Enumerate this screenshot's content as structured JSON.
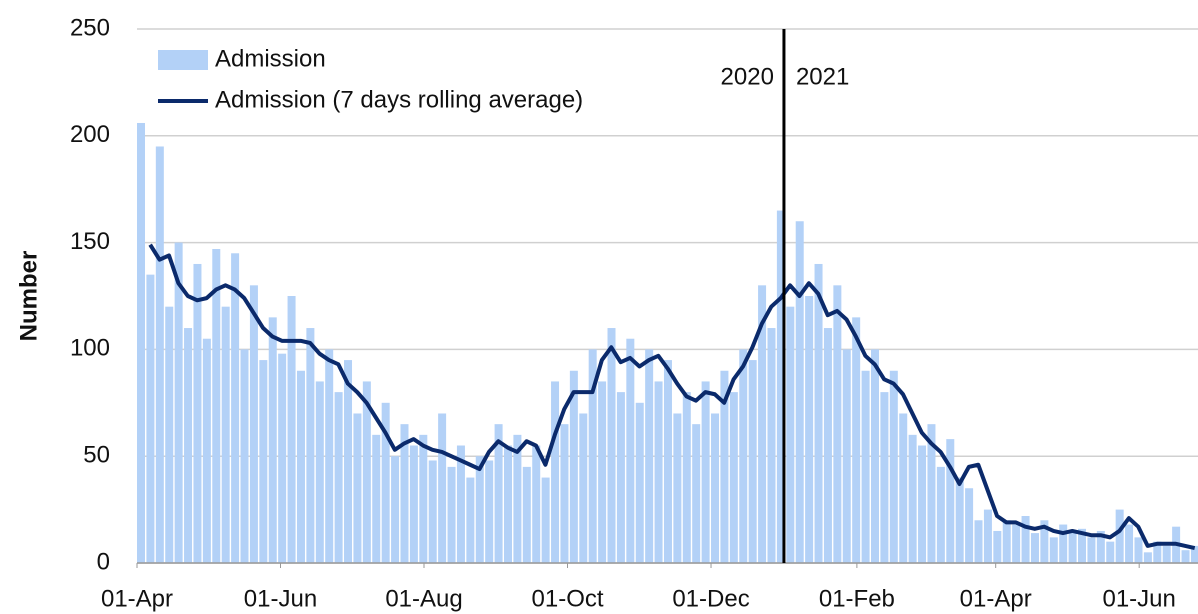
{
  "chart_data": {
    "type": "bar",
    "y_label": "Number",
    "annotations": [
      "2020",
      "2021"
    ],
    "year_divider": 275,
    "xlim": [
      0,
      451
    ],
    "xticks": [
      {
        "value": 0,
        "label": "01-Apr"
      },
      {
        "value": 61,
        "label": "01-Jun"
      },
      {
        "value": 122,
        "label": "01-Aug"
      },
      {
        "value": 183,
        "label": "01-Oct"
      },
      {
        "value": 244,
        "label": "01-Dec"
      },
      {
        "value": 306,
        "label": "01-Feb"
      },
      {
        "value": 365,
        "label": "01-Apr"
      },
      {
        "value": 426,
        "label": "01-Jun"
      }
    ],
    "ylim": [
      0,
      250
    ],
    "yticks": [
      0,
      50,
      100,
      150,
      200,
      250
    ],
    "grid": true,
    "legend": "top-left",
    "x": [
      0,
      4,
      8,
      12,
      16,
      20,
      24,
      28,
      32,
      36,
      40,
      44,
      48,
      52,
      56,
      60,
      64,
      68,
      72,
      76,
      80,
      84,
      88,
      92,
      96,
      100,
      104,
      108,
      112,
      116,
      120,
      124,
      128,
      132,
      136,
      140,
      144,
      148,
      152,
      156,
      160,
      164,
      168,
      172,
      176,
      180,
      184,
      188,
      192,
      196,
      200,
      204,
      208,
      212,
      216,
      220,
      224,
      228,
      232,
      236,
      240,
      244,
      248,
      252,
      256,
      260,
      264,
      268,
      272,
      276,
      280,
      284,
      288,
      292,
      296,
      300,
      304,
      308,
      312,
      316,
      320,
      324,
      328,
      332,
      336,
      340,
      344,
      348,
      352,
      356,
      360,
      364,
      368,
      372,
      376,
      380,
      384,
      388,
      392,
      396,
      400,
      404,
      408,
      412,
      416,
      420,
      424,
      428,
      432,
      436,
      440,
      444,
      448
    ],
    "series": [
      {
        "name": "Admission",
        "type": "bar",
        "color": "#b3d1f7",
        "values": [
          206,
          135,
          195,
          120,
          150,
          110,
          140,
          105,
          147,
          120,
          145,
          100,
          130,
          95,
          115,
          98,
          125,
          90,
          110,
          85,
          100,
          80,
          95,
          70,
          85,
          60,
          75,
          50,
          65,
          55,
          60,
          48,
          70,
          45,
          55,
          40,
          50,
          48,
          65,
          55,
          60,
          45,
          55,
          40,
          85,
          65,
          90,
          70,
          100,
          85,
          110,
          80,
          105,
          75,
          100,
          85,
          95,
          70,
          80,
          65,
          85,
          70,
          90,
          80,
          100,
          95,
          130,
          110,
          165,
          120,
          160,
          125,
          140,
          110,
          130,
          100,
          115,
          90,
          100,
          80,
          90,
          70,
          60,
          55,
          65,
          45,
          58,
          40,
          35,
          20,
          25,
          15,
          20,
          18,
          22,
          14,
          20,
          12,
          18,
          15,
          16,
          12,
          15,
          10,
          25,
          18,
          12,
          5,
          10,
          8,
          17,
          6,
          8
        ]
      },
      {
        "name": "Admission (7 days rolling average)",
        "type": "line",
        "color": "#0b2a6b",
        "values": [
          null,
          149,
          142,
          144,
          131,
          125,
          123,
          124,
          128,
          130,
          128,
          124,
          117,
          110,
          106,
          104,
          104,
          104,
          103,
          98,
          95,
          93,
          84,
          80,
          75,
          68,
          61,
          53,
          56,
          58,
          55,
          53,
          52,
          50,
          48,
          46,
          44,
          52,
          57,
          54,
          52,
          57,
          55,
          46,
          60,
          72,
          80,
          80,
          80,
          95,
          101,
          94,
          96,
          92,
          95,
          97,
          91,
          84,
          78,
          76,
          80,
          79,
          75,
          86,
          92,
          101,
          112,
          120,
          124,
          130,
          125,
          131,
          126,
          116,
          118,
          114,
          106,
          97,
          93,
          86,
          84,
          79,
          70,
          61,
          56,
          52,
          45,
          37,
          45,
          46,
          34,
          22,
          19,
          19,
          17,
          16,
          17,
          15,
          14,
          15,
          14,
          13,
          13,
          12,
          15,
          21,
          17,
          8,
          9,
          9,
          9,
          8,
          7
        ]
      }
    ]
  }
}
